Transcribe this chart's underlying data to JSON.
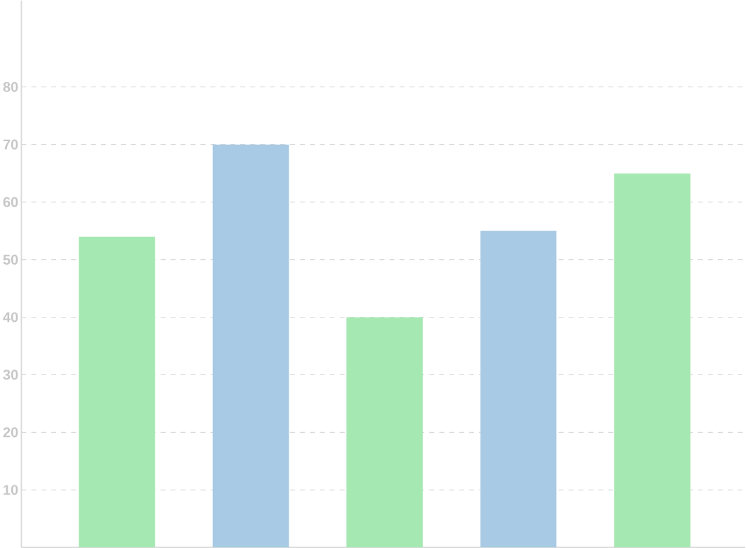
{
  "chart_data": {
    "type": "bar",
    "categories": [
      null,
      null,
      null,
      null,
      null
    ],
    "values": [
      54,
      70,
      40,
      55,
      65
    ],
    "colors": [
      "#a6e8b1",
      "#a8cae4",
      "#a6e8b1",
      "#a8cae4",
      "#a6e8b1"
    ],
    "ylim": [
      0,
      95
    ],
    "yticks": [
      10,
      20,
      30,
      40,
      50,
      60,
      70,
      80
    ],
    "grid": "y"
  }
}
